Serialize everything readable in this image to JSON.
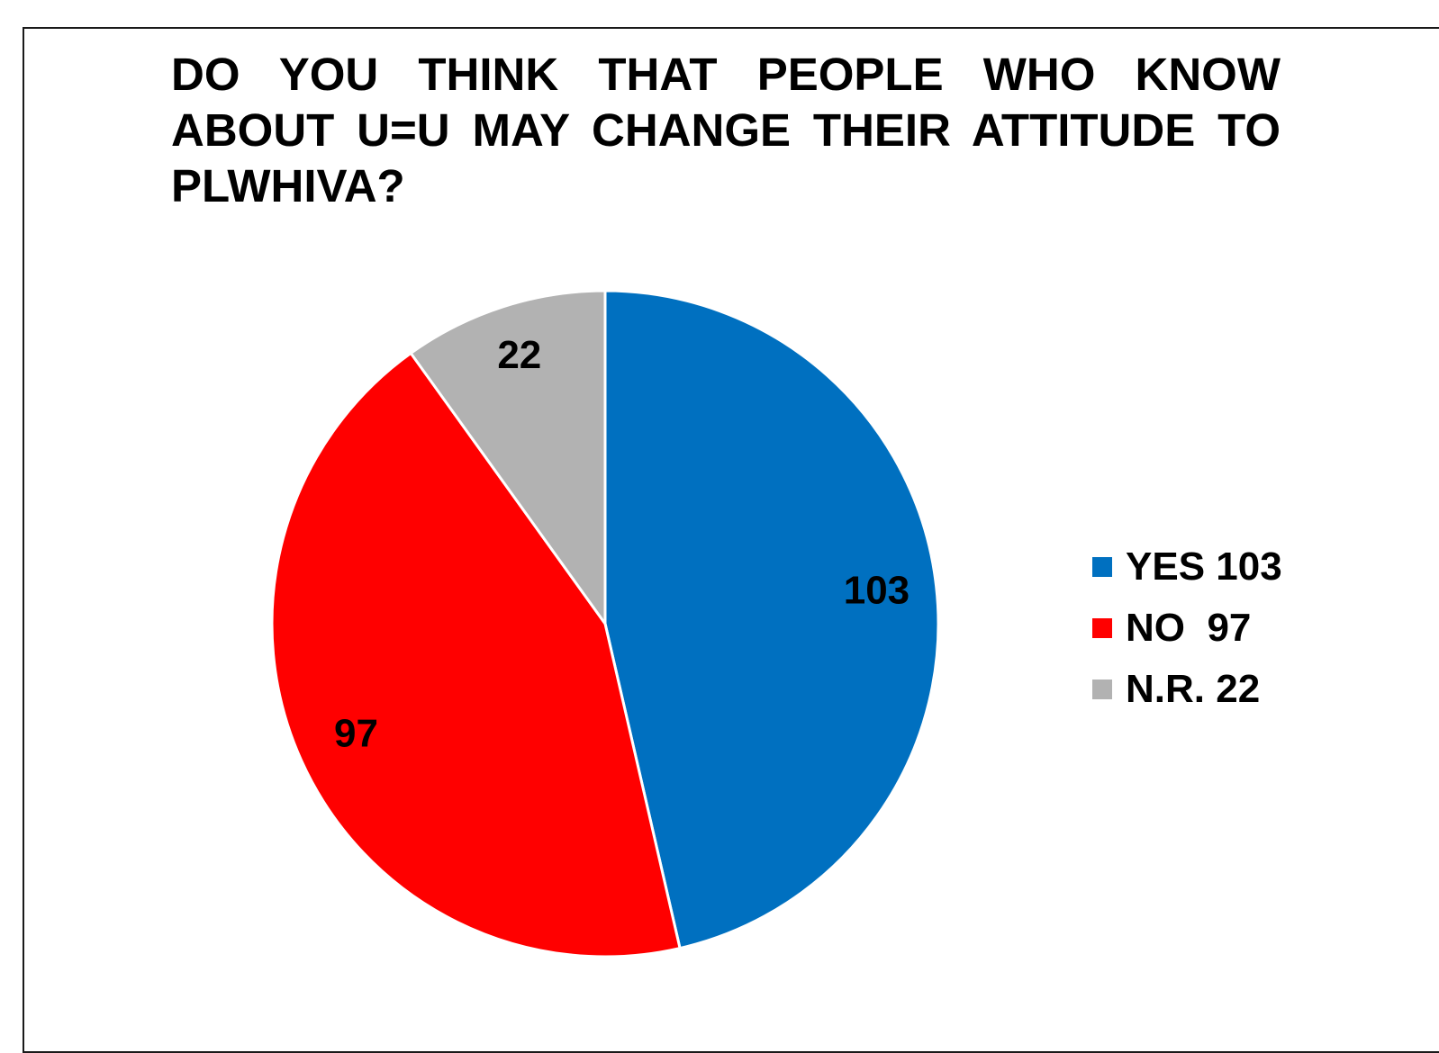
{
  "chart_data": {
    "type": "pie",
    "title": "DO YOU THINK THAT PEOPLE WHO KNOW ABOUT U=U MAY CHANGE THEIR ATTITUDE TO PLWHIVA?",
    "slices": [
      {
        "category": "YES",
        "value": 103,
        "data_label": "103",
        "legend_label": "YES 103",
        "color": "#0070C0"
      },
      {
        "category": "NO",
        "value": 97,
        "data_label": "97",
        "legend_label": "NO  97",
        "color": "#FF0000"
      },
      {
        "category": "N.R.",
        "value": 22,
        "data_label": "22",
        "legend_label": "N.R. 22",
        "color": "#B2B2B2"
      }
    ],
    "start_angle": "12 o'clock",
    "direction": "clockwise",
    "legend_position": "right"
  }
}
